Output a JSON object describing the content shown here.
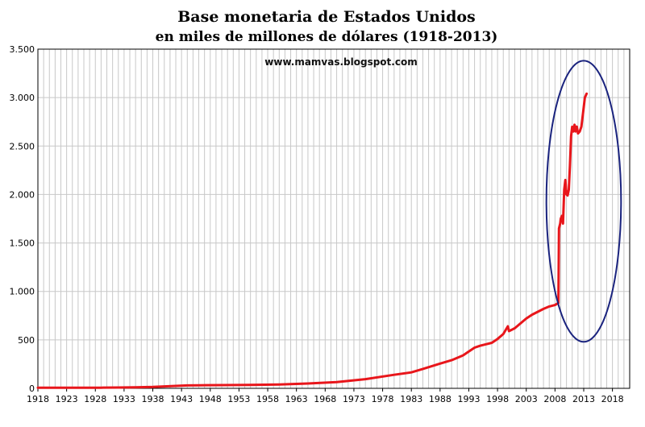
{
  "chart_data": {
    "type": "line",
    "title": "Base monetaria de Estados Unidos",
    "subtitle": "en miles de millones de dólares (1918-2013)",
    "watermark": "www.mamvas.blogspot.com",
    "xlabel": "",
    "ylabel": "",
    "xlim": [
      1918,
      2021
    ],
    "ylim": [
      0,
      3500
    ],
    "x_ticks": [
      1918,
      1923,
      1928,
      1933,
      1938,
      1943,
      1948,
      1953,
      1958,
      1963,
      1968,
      1973,
      1978,
      1983,
      1988,
      1993,
      1998,
      2003,
      2008,
      2013,
      2018
    ],
    "y_ticks": [
      0,
      500,
      1000,
      1500,
      2000,
      2500,
      3000,
      3500
    ],
    "y_tick_labels": [
      "0",
      "500",
      "1.000",
      "1.500",
      "2.000",
      "2.500",
      "3.000",
      "3.500"
    ],
    "grid": true,
    "legend": "none",
    "highlight": {
      "shape": "ellipse",
      "x_range": [
        2006.5,
        2019.5
      ],
      "y_range": [
        480,
        3380
      ],
      "color": "#1a237e"
    },
    "series": [
      {
        "name": "",
        "color": "#e8161b",
        "x": [
          1918,
          1921,
          1925,
          1929,
          1932,
          1935,
          1938,
          1940,
          1942,
          1944,
          1946,
          1950,
          1955,
          1960,
          1965,
          1970,
          1975,
          1980,
          1983,
          1985,
          1988,
          1990,
          1992,
          1993,
          1994,
          1995,
          1996,
          1997,
          1998,
          1999,
          1999.8,
          2000,
          2001,
          2002,
          2003,
          2004,
          2005,
          2006,
          2007,
          2008.0,
          2008.6,
          2008.7,
          2008.9,
          2009.0,
          2009.2,
          2009.4,
          2009.6,
          2009.8,
          2010.0,
          2010.2,
          2010.4,
          2010.6,
          2010.8,
          2011.0,
          2011.2,
          2011.4,
          2011.6,
          2011.8,
          2012.0,
          2012.3,
          2012.6,
          2012.9,
          2013.2,
          2013.5
        ],
        "values": [
          6,
          6,
          7,
          7,
          8,
          11,
          14,
          20,
          25,
          30,
          32,
          33,
          36,
          40,
          50,
          65,
          95,
          140,
          165,
          200,
          255,
          290,
          340,
          380,
          420,
          440,
          455,
          470,
          510,
          560,
          640,
          590,
          620,
          670,
          720,
          760,
          790,
          820,
          845,
          860,
          880,
          1650,
          1700,
          1750,
          1780,
          1700,
          2050,
          2150,
          2000,
          1990,
          2050,
          2300,
          2600,
          2700,
          2650,
          2720,
          2650,
          2700,
          2630,
          2650,
          2700,
          2850,
          3000,
          3040
        ]
      }
    ]
  }
}
